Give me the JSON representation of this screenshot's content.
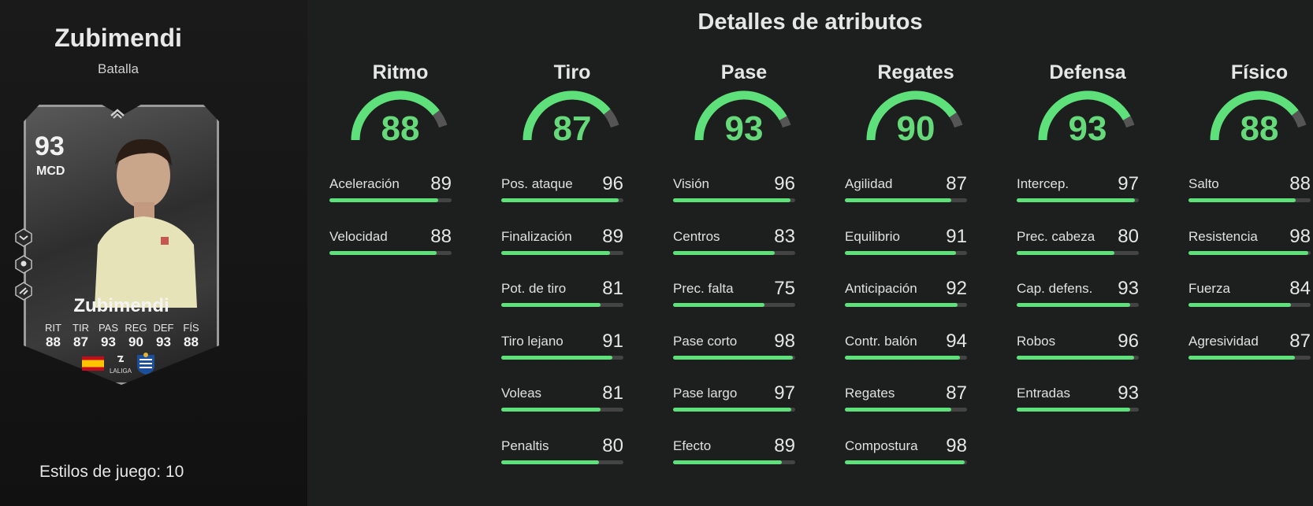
{
  "player": {
    "name": "Zubimendi",
    "play_style": "Batalla",
    "card": {
      "rating": "93",
      "position": "MCD",
      "name": "Zubimendi",
      "league": "LALIGA",
      "stat_labels": [
        "RIT",
        "TIR",
        "PAS",
        "REG",
        "DEF",
        "FÍS"
      ],
      "stat_values": [
        "88",
        "87",
        "93",
        "90",
        "93",
        "88"
      ]
    },
    "playstyles_count": "Estilos de juego: 10"
  },
  "colors": {
    "accent": "#5ee07a",
    "gauge_track": "#555555",
    "bar_track": "#444444"
  },
  "attributes_title": "Detalles de atributos",
  "categories": [
    {
      "name": "Ritmo",
      "value": "88",
      "stats": [
        {
          "label": "Aceleración",
          "value": "89"
        },
        {
          "label": "Velocidad",
          "value": "88"
        }
      ]
    },
    {
      "name": "Tiro",
      "value": "87",
      "stats": [
        {
          "label": "Pos. ataque",
          "value": "96"
        },
        {
          "label": "Finalización",
          "value": "89"
        },
        {
          "label": "Pot. de tiro",
          "value": "81"
        },
        {
          "label": "Tiro lejano",
          "value": "91"
        },
        {
          "label": "Voleas",
          "value": "81"
        },
        {
          "label": "Penaltis",
          "value": "80"
        }
      ]
    },
    {
      "name": "Pase",
      "value": "93",
      "stats": [
        {
          "label": "Visión",
          "value": "96"
        },
        {
          "label": "Centros",
          "value": "83"
        },
        {
          "label": "Prec. falta",
          "value": "75"
        },
        {
          "label": "Pase corto",
          "value": "98"
        },
        {
          "label": "Pase largo",
          "value": "97"
        },
        {
          "label": "Efecto",
          "value": "89"
        }
      ]
    },
    {
      "name": "Regates",
      "value": "90",
      "stats": [
        {
          "label": "Agilidad",
          "value": "87"
        },
        {
          "label": "Equilibrio",
          "value": "91"
        },
        {
          "label": "Anticipación",
          "value": "92"
        },
        {
          "label": "Contr. balón",
          "value": "94"
        },
        {
          "label": "Regates",
          "value": "87"
        },
        {
          "label": "Compostura",
          "value": "98"
        }
      ]
    },
    {
      "name": "Defensa",
      "value": "93",
      "stats": [
        {
          "label": "Intercep.",
          "value": "97"
        },
        {
          "label": "Prec. cabeza",
          "value": "80"
        },
        {
          "label": "Cap. defens.",
          "value": "93"
        },
        {
          "label": "Robos",
          "value": "96"
        },
        {
          "label": "Entradas",
          "value": "93"
        }
      ]
    },
    {
      "name": "Físico",
      "value": "88",
      "stats": [
        {
          "label": "Salto",
          "value": "88"
        },
        {
          "label": "Resistencia",
          "value": "98"
        },
        {
          "label": "Fuerza",
          "value": "84"
        },
        {
          "label": "Agresividad",
          "value": "87"
        }
      ]
    }
  ]
}
